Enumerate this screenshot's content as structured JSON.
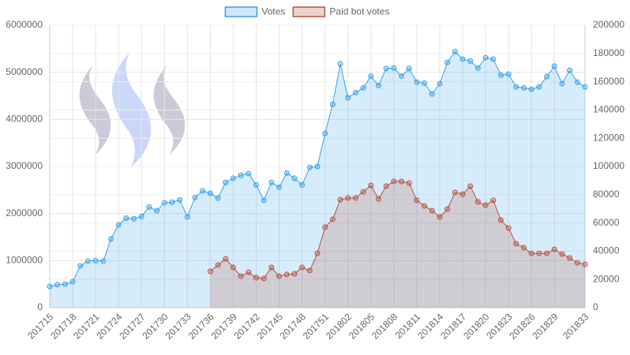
{
  "chart_data": {
    "type": "line",
    "legend": "top",
    "grid": true,
    "categories": [
      "201715",
      null,
      null,
      "201718",
      null,
      null,
      "201721",
      null,
      null,
      "201724",
      null,
      null,
      "201727",
      null,
      null,
      "201730",
      null,
      null,
      "201733",
      null,
      null,
      "201736",
      null,
      null,
      "201739",
      null,
      null,
      "201742",
      null,
      null,
      "201745",
      null,
      null,
      "201748",
      null,
      null,
      "201751",
      null,
      null,
      "201802",
      null,
      null,
      "201805",
      null,
      null,
      "201808",
      null,
      null,
      "201811",
      null,
      null,
      "201814",
      null,
      null,
      "201817",
      null,
      null,
      "201820",
      null,
      null,
      "201823",
      null,
      null,
      "201826",
      null,
      null,
      "201829",
      null,
      null,
      null,
      "201833"
    ],
    "ylim": [
      0,
      6000000
    ],
    "yticks": [
      0,
      1000000,
      2000000,
      3000000,
      4000000,
      5000000,
      6000000
    ],
    "y2lim": [
      0,
      200000
    ],
    "y2ticks": [
      0,
      20000,
      40000,
      60000,
      80000,
      100000,
      120000,
      140000,
      160000,
      180000,
      200000
    ],
    "series": [
      {
        "name": "Votes",
        "color": "#36a2eb",
        "axis": "y",
        "values": [
          450000,
          490000,
          500000,
          550000,
          890000,
          990000,
          1000000,
          990000,
          1460000,
          1760000,
          1900000,
          1890000,
          1940000,
          2140000,
          2060000,
          2230000,
          2240000,
          2290000,
          1930000,
          2340000,
          2480000,
          2430000,
          2330000,
          2660000,
          2750000,
          2810000,
          2850000,
          2610000,
          2280000,
          2660000,
          2560000,
          2860000,
          2750000,
          2610000,
          2980000,
          3000000,
          3700000,
          4320000,
          5180000,
          4460000,
          4570000,
          4670000,
          4920000,
          4720000,
          5080000,
          5090000,
          4920000,
          5080000,
          4790000,
          4770000,
          4540000,
          4760000,
          5210000,
          5440000,
          5280000,
          5240000,
          5090000,
          5310000,
          5280000,
          4940000,
          4960000,
          4690000,
          4670000,
          4640000,
          4690000,
          4910000,
          5130000,
          4760000,
          5040000,
          4790000,
          4690000
        ]
      },
      {
        "name": "Paid bot votes",
        "color": "#b5533c",
        "axis": "y2",
        "values": [
          null,
          null,
          null,
          null,
          null,
          null,
          null,
          null,
          null,
          null,
          null,
          null,
          null,
          null,
          null,
          null,
          null,
          null,
          null,
          null,
          null,
          25700,
          30200,
          34600,
          28500,
          22300,
          25100,
          21200,
          20700,
          28500,
          22300,
          23500,
          24000,
          28500,
          26300,
          38500,
          57000,
          62600,
          76500,
          77700,
          77700,
          82100,
          86600,
          77100,
          86000,
          89400,
          89400,
          88300,
          76000,
          72100,
          68700,
          64200,
          69800,
          81600,
          80400,
          86000,
          74900,
          72600,
          76000,
          62000,
          56400,
          45300,
          42500,
          38500,
          38500,
          38500,
          41300,
          38000,
          35200,
          31800,
          30700
        ]
      }
    ]
  }
}
